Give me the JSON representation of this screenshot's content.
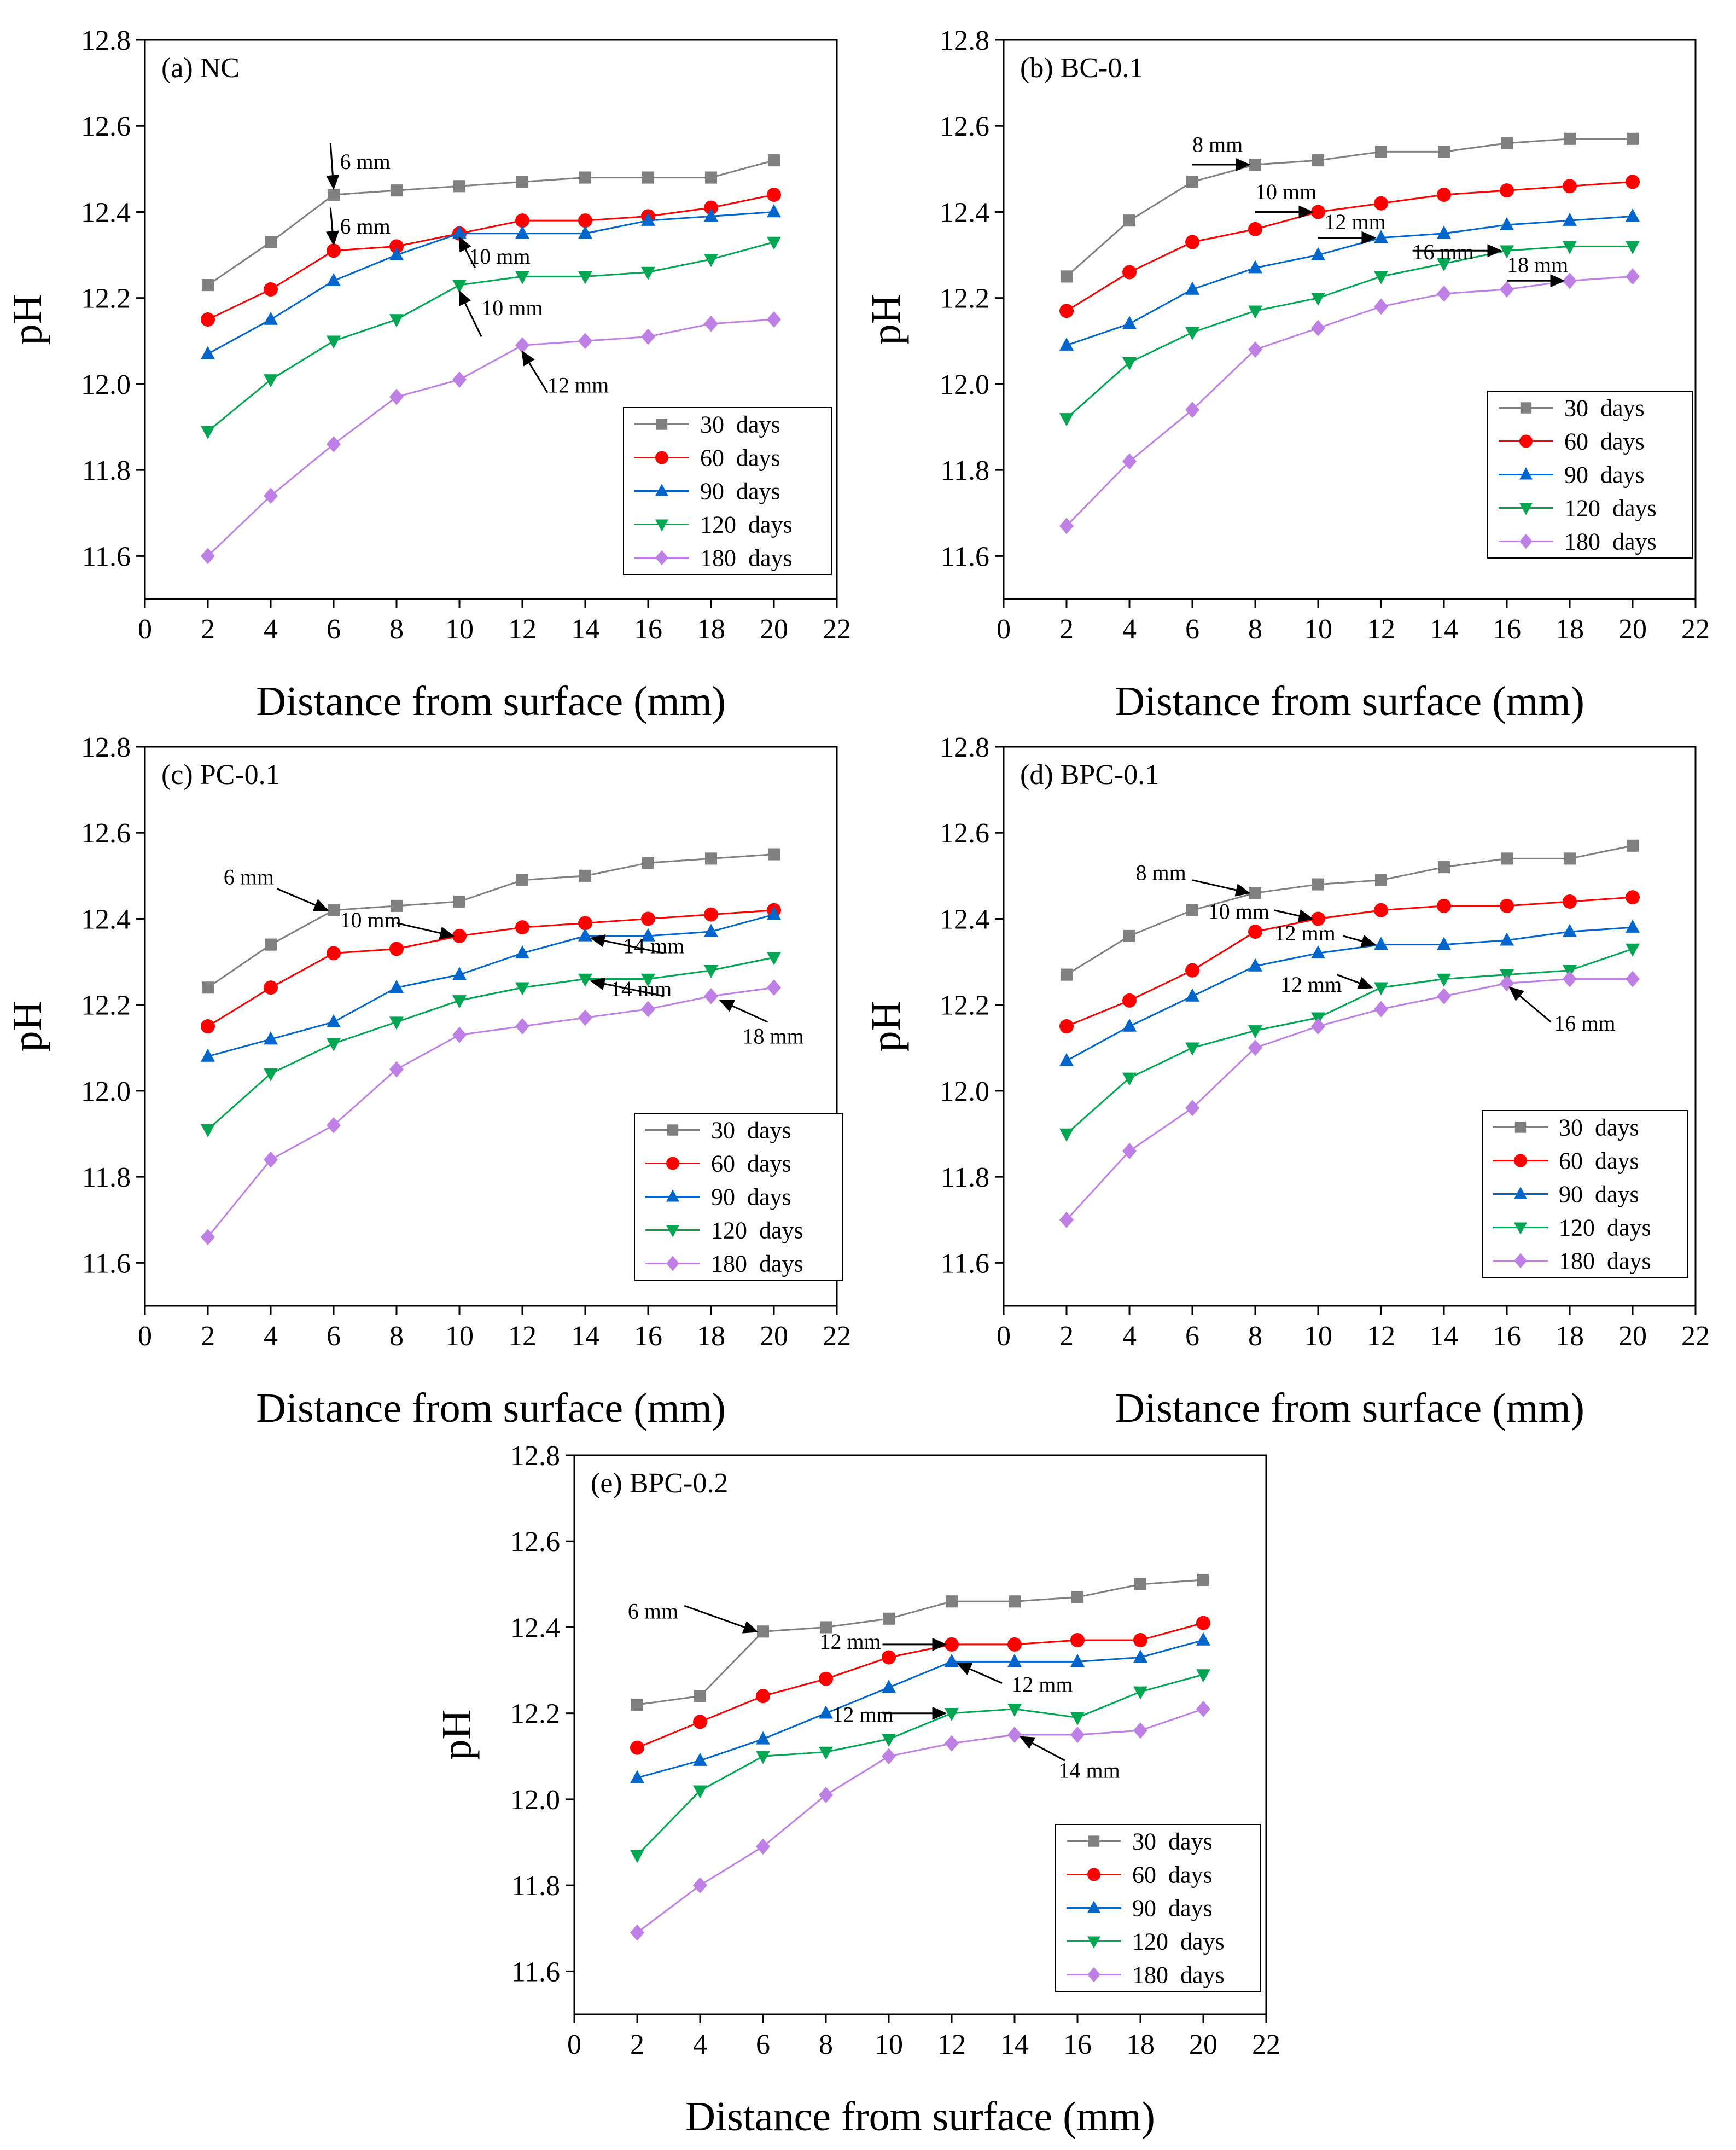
{
  "chart_data": [
    {
      "type": "line",
      "title": "(a) NC",
      "xlabel": "Distance from surface (mm)",
      "ylabel": "pH",
      "xlim": [
        0,
        22
      ],
      "ylim": [
        11.5,
        12.8
      ],
      "xticks": [
        0,
        2,
        4,
        6,
        8,
        10,
        12,
        14,
        16,
        18,
        20,
        22
      ],
      "yticks": [
        11.6,
        11.8,
        12.0,
        12.2,
        12.4,
        12.6,
        12.8
      ],
      "x": [
        2,
        4,
        6,
        8,
        10,
        12,
        14,
        16,
        18,
        20
      ],
      "legend_position": "bottom-right",
      "series": [
        {
          "name": "30 days",
          "values": [
            12.23,
            12.33,
            12.44,
            12.45,
            12.46,
            12.47,
            12.48,
            12.48,
            12.48,
            12.52
          ]
        },
        {
          "name": "60 days",
          "values": [
            12.15,
            12.22,
            12.31,
            12.32,
            12.35,
            12.38,
            12.38,
            12.39,
            12.41,
            12.44
          ]
        },
        {
          "name": "90 days",
          "values": [
            12.07,
            12.15,
            12.24,
            12.3,
            12.35,
            12.35,
            12.35,
            12.38,
            12.39,
            12.4
          ]
        },
        {
          "name": "120 days",
          "values": [
            11.89,
            12.01,
            12.1,
            12.15,
            12.23,
            12.25,
            12.25,
            12.26,
            12.29,
            12.33
          ]
        },
        {
          "name": "180 days",
          "values": [
            11.6,
            11.74,
            11.86,
            11.97,
            12.01,
            12.09,
            12.1,
            12.11,
            12.14,
            12.15
          ]
        }
      ],
      "annotations": [
        {
          "text": "6 mm",
          "tx": 6.2,
          "ty": 12.5,
          "ax": 6,
          "ay": 12.455,
          "fx": 5.9,
          "fy": 12.56
        },
        {
          "text": "6 mm",
          "tx": 6.2,
          "ty": 12.35,
          "ax": 6,
          "ay": 12.325,
          "fx": 5.9,
          "fy": 12.41
        },
        {
          "text": "10 mm",
          "tx": 10.3,
          "ty": 12.28,
          "ax": 10,
          "ay": 12.34,
          "fx": 10.5,
          "fy": 12.27
        },
        {
          "text": "10 mm",
          "tx": 10.7,
          "ty": 12.16,
          "ax": 10,
          "ay": 12.215,
          "fx": 10.7,
          "fy": 12.11
        },
        {
          "text": "12 mm",
          "tx": 12.8,
          "ty": 11.98,
          "ax": 12,
          "ay": 12.075,
          "fx": 12.8,
          "fy": 11.98
        }
      ]
    },
    {
      "type": "line",
      "title": "(b) BC-0.1",
      "xlabel": "Distance from surface (mm)",
      "ylabel": "pH",
      "xlim": [
        0,
        22
      ],
      "ylim": [
        11.5,
        12.8
      ],
      "xticks": [
        0,
        2,
        4,
        6,
        8,
        10,
        12,
        14,
        16,
        18,
        20,
        22
      ],
      "yticks": [
        11.6,
        11.8,
        12.0,
        12.2,
        12.4,
        12.6,
        12.8
      ],
      "x": [
        2,
        4,
        6,
        8,
        10,
        12,
        14,
        16,
        18,
        20
      ],
      "legend_position": "bottom-right",
      "series": [
        {
          "name": "30 days",
          "values": [
            12.25,
            12.38,
            12.47,
            12.51,
            12.52,
            12.54,
            12.54,
            12.56,
            12.57,
            12.57
          ]
        },
        {
          "name": "60 days",
          "values": [
            12.17,
            12.26,
            12.33,
            12.36,
            12.4,
            12.42,
            12.44,
            12.45,
            12.46,
            12.47
          ]
        },
        {
          "name": "90 days",
          "values": [
            12.09,
            12.14,
            12.22,
            12.27,
            12.3,
            12.34,
            12.35,
            12.37,
            12.38,
            12.39
          ]
        },
        {
          "name": "120 days",
          "values": [
            11.92,
            12.05,
            12.12,
            12.17,
            12.2,
            12.25,
            12.28,
            12.31,
            12.32,
            12.32
          ]
        },
        {
          "name": "180 days",
          "values": [
            11.67,
            11.82,
            11.94,
            12.08,
            12.13,
            12.18,
            12.21,
            12.22,
            12.24,
            12.25
          ]
        }
      ],
      "annotations": [
        {
          "text": "8 mm",
          "tx": 6.0,
          "ty": 12.54,
          "ax": 7.8,
          "ay": 12.51,
          "fx": 6.0,
          "fy": 12.51
        },
        {
          "text": "10 mm",
          "tx": 8.0,
          "ty": 12.43,
          "ax": 9.8,
          "ay": 12.4,
          "fx": 8.0,
          "fy": 12.4
        },
        {
          "text": "12 mm",
          "tx": 10.2,
          "ty": 12.36,
          "ax": 11.8,
          "ay": 12.34,
          "fx": 10.0,
          "fy": 12.34
        },
        {
          "text": "16 mm",
          "tx": 13.0,
          "ty": 12.29,
          "ax": 15.8,
          "ay": 12.31,
          "fx": 13.0,
          "fy": 12.31
        },
        {
          "text": "18 mm",
          "tx": 16.0,
          "ty": 12.26,
          "ax": 17.8,
          "ay": 12.24,
          "fx": 16.0,
          "fy": 12.24
        }
      ]
    },
    {
      "type": "line",
      "title": "(c) PC-0.1",
      "xlabel": "Distance from surface (mm)",
      "ylabel": "pH",
      "xlim": [
        0,
        22
      ],
      "ylim": [
        11.5,
        12.8
      ],
      "xticks": [
        0,
        2,
        4,
        6,
        8,
        10,
        12,
        14,
        16,
        18,
        20,
        22
      ],
      "yticks": [
        11.6,
        11.8,
        12.0,
        12.2,
        12.4,
        12.6,
        12.8
      ],
      "x": [
        2,
        4,
        6,
        8,
        10,
        12,
        14,
        16,
        18,
        20
      ],
      "legend_position": "bottom-right",
      "series": [
        {
          "name": "30 days",
          "values": [
            12.24,
            12.34,
            12.42,
            12.43,
            12.44,
            12.49,
            12.5,
            12.53,
            12.54,
            12.55
          ]
        },
        {
          "name": "60 days",
          "values": [
            12.15,
            12.24,
            12.32,
            12.33,
            12.36,
            12.38,
            12.39,
            12.4,
            12.41,
            12.42
          ]
        },
        {
          "name": "90 days",
          "values": [
            12.08,
            12.12,
            12.16,
            12.24,
            12.27,
            12.32,
            12.36,
            12.36,
            12.37,
            12.41
          ]
        },
        {
          "name": "120 days",
          "values": [
            11.91,
            12.04,
            12.11,
            12.16,
            12.21,
            12.24,
            12.26,
            12.26,
            12.28,
            12.31
          ]
        },
        {
          "name": "180 days",
          "values": [
            11.66,
            11.84,
            11.92,
            12.05,
            12.13,
            12.15,
            12.17,
            12.19,
            12.22,
            12.24
          ]
        }
      ],
      "annotations": [
        {
          "text": "6 mm",
          "tx": 2.5,
          "ty": 12.48,
          "ax": 5.8,
          "ay": 12.42,
          "fx": 4.2,
          "fy": 12.47
        },
        {
          "text": "10 mm",
          "tx": 6.2,
          "ty": 12.38,
          "ax": 9.8,
          "ay": 12.36,
          "fx": 8.0,
          "fy": 12.39
        },
        {
          "text": "14 mm",
          "tx": 15.2,
          "ty": 12.32,
          "ax": 14.2,
          "ay": 12.355,
          "fx": 16.5,
          "fy": 12.32
        },
        {
          "text": "14 mm",
          "tx": 14.8,
          "ty": 12.22,
          "ax": 14.2,
          "ay": 12.255,
          "fx": 16.5,
          "fy": 12.22
        },
        {
          "text": "18 mm",
          "tx": 19.0,
          "ty": 12.11,
          "ax": 18.3,
          "ay": 12.21,
          "fx": 19.8,
          "fy": 12.16
        }
      ]
    },
    {
      "type": "line",
      "title": "(d) BPC-0.1",
      "xlabel": "Distance from surface (mm)",
      "ylabel": "pH",
      "xlim": [
        0,
        22
      ],
      "ylim": [
        11.5,
        12.8
      ],
      "xticks": [
        0,
        2,
        4,
        6,
        8,
        10,
        12,
        14,
        16,
        18,
        20,
        22
      ],
      "yticks": [
        11.6,
        11.8,
        12.0,
        12.2,
        12.4,
        12.6,
        12.8
      ],
      "x": [
        2,
        4,
        6,
        8,
        10,
        12,
        14,
        16,
        18,
        20
      ],
      "legend_position": "bottom-right",
      "series": [
        {
          "name": "30 days",
          "values": [
            12.27,
            12.36,
            12.42,
            12.46,
            12.48,
            12.49,
            12.52,
            12.54,
            12.54,
            12.57
          ]
        },
        {
          "name": "60 days",
          "values": [
            12.15,
            12.21,
            12.28,
            12.37,
            12.4,
            12.42,
            12.43,
            12.43,
            12.44,
            12.45
          ]
        },
        {
          "name": "90 days",
          "values": [
            12.07,
            12.15,
            12.22,
            12.29,
            12.32,
            12.34,
            12.34,
            12.35,
            12.37,
            12.38
          ]
        },
        {
          "name": "120 days",
          "values": [
            11.9,
            12.03,
            12.1,
            12.14,
            12.17,
            12.24,
            12.26,
            12.27,
            12.28,
            12.33
          ]
        },
        {
          "name": "180 days",
          "values": [
            11.7,
            11.86,
            11.96,
            12.1,
            12.15,
            12.19,
            12.22,
            12.25,
            12.26,
            12.26
          ]
        }
      ],
      "annotations": [
        {
          "text": "8 mm",
          "tx": 4.2,
          "ty": 12.49,
          "ax": 7.8,
          "ay": 12.46,
          "fx": 6.0,
          "fy": 12.49
        },
        {
          "text": "10 mm",
          "tx": 6.5,
          "ty": 12.4,
          "ax": 9.8,
          "ay": 12.4,
          "fx": 8.6,
          "fy": 12.42
        },
        {
          "text": "12 mm",
          "tx": 8.6,
          "ty": 12.35,
          "ax": 11.8,
          "ay": 12.34,
          "fx": 10.8,
          "fy": 12.36
        },
        {
          "text": "12 mm",
          "tx": 8.8,
          "ty": 12.23,
          "ax": 11.7,
          "ay": 12.24,
          "fx": 10.6,
          "fy": 12.27
        },
        {
          "text": "16 mm",
          "tx": 17.5,
          "ty": 12.14,
          "ax": 16.1,
          "ay": 12.24,
          "fx": 17.4,
          "fy": 12.16
        }
      ]
    },
    {
      "type": "line",
      "title": "(e) BPC-0.2",
      "xlabel": "Distance from surface (mm)",
      "ylabel": "pH",
      "xlim": [
        0,
        22
      ],
      "ylim": [
        11.5,
        12.8
      ],
      "xticks": [
        0,
        2,
        4,
        6,
        8,
        10,
        12,
        14,
        16,
        18,
        20,
        22
      ],
      "yticks": [
        11.6,
        11.8,
        12.0,
        12.2,
        12.4,
        12.6,
        12.8
      ],
      "x": [
        2,
        4,
        6,
        8,
        10,
        12,
        14,
        16,
        18,
        20
      ],
      "legend_position": "bottom-right",
      "series": [
        {
          "name": "30 days",
          "values": [
            12.22,
            12.24,
            12.39,
            12.4,
            12.42,
            12.46,
            12.46,
            12.47,
            12.5,
            12.51
          ]
        },
        {
          "name": "60 days",
          "values": [
            12.12,
            12.18,
            12.24,
            12.28,
            12.33,
            12.36,
            12.36,
            12.37,
            12.37,
            12.41
          ]
        },
        {
          "name": "90 days",
          "values": [
            12.05,
            12.09,
            12.14,
            12.2,
            12.26,
            12.32,
            12.32,
            12.32,
            12.33,
            12.37
          ]
        },
        {
          "name": "120 days",
          "values": [
            11.87,
            12.02,
            12.1,
            12.11,
            12.14,
            12.2,
            12.21,
            12.19,
            12.25,
            12.29
          ]
        },
        {
          "name": "180 days",
          "values": [
            11.69,
            11.8,
            11.89,
            12.01,
            12.1,
            12.13,
            12.15,
            12.15,
            12.16,
            12.21
          ]
        }
      ],
      "annotations": [
        {
          "text": "6 mm",
          "tx": 1.7,
          "ty": 12.42,
          "ax": 5.8,
          "ay": 12.39,
          "fx": 3.5,
          "fy": 12.45
        },
        {
          "text": "12 mm",
          "tx": 7.8,
          "ty": 12.35,
          "ax": 11.8,
          "ay": 12.36,
          "fx": 9.8,
          "fy": 12.36
        },
        {
          "text": "12 mm",
          "tx": 13.9,
          "ty": 12.25,
          "ax": 12.2,
          "ay": 12.315,
          "fx": 13.6,
          "fy": 12.27
        },
        {
          "text": "12 mm",
          "tx": 8.2,
          "ty": 12.18,
          "ax": 11.8,
          "ay": 12.2,
          "fx": 9.8,
          "fy": 12.2
        },
        {
          "text": "14 mm",
          "tx": 15.4,
          "ty": 12.05,
          "ax": 14.2,
          "ay": 12.145,
          "fx": 15.6,
          "fy": 12.09
        }
      ]
    }
  ],
  "colors": {
    "30 days": "#808080",
    "60 days": "#ff0000",
    "90 days": "#0066cc",
    "120 days": "#00a651",
    "180 days": "#bf80e6"
  },
  "markers": {
    "30 days": "square",
    "60 days": "circle",
    "90 days": "triangle-up",
    "120 days": "triangle-down",
    "180 days": "diamond"
  }
}
